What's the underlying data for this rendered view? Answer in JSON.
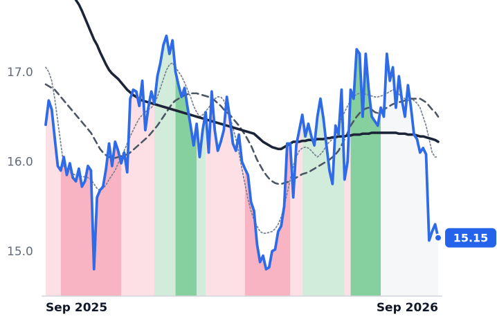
{
  "chart_data": {
    "type": "line",
    "xlabel": "",
    "ylabel": "",
    "ylim": [
      14.5,
      17.8
    ],
    "y_ticks": [
      {
        "value": 15.0,
        "label": "15.0"
      },
      {
        "value": 16.0,
        "label": "16.0"
      },
      {
        "value": 17.0,
        "label": "17.0"
      }
    ],
    "x_ticks": [
      {
        "index": 0,
        "label": "Sep 2025"
      },
      {
        "index": 130,
        "label": "Sep 2026"
      }
    ],
    "x_count": 131,
    "grid": false,
    "last_value_label": "15.15",
    "colors": {
      "price": "#2f6be6",
      "long_ma": "#1b2537",
      "mid_ma": "#4b5563",
      "short_ma": "#7b8594",
      "badge": "#2563eb",
      "red_light": "#fde0e5",
      "red_dark": "#f8b4c2",
      "green_light": "#d2ecdb",
      "green_dark": "#86cf9e",
      "gray": "#f6f7f9",
      "axis": "#d1d5db"
    },
    "bands": [
      {
        "start": 0,
        "end": 5,
        "color": "red_light"
      },
      {
        "start": 5,
        "end": 25,
        "color": "red_dark"
      },
      {
        "start": 25,
        "end": 36,
        "color": "red_light"
      },
      {
        "start": 36,
        "end": 43,
        "color": "green_light"
      },
      {
        "start": 43,
        "end": 50,
        "color": "green_dark"
      },
      {
        "start": 50,
        "end": 53,
        "color": "green_light"
      },
      {
        "start": 53,
        "end": 66,
        "color": "red_light"
      },
      {
        "start": 66,
        "end": 81,
        "color": "red_dark"
      },
      {
        "start": 81,
        "end": 85,
        "color": "red_light"
      },
      {
        "start": 85,
        "end": 99,
        "color": "green_light"
      },
      {
        "start": 99,
        "end": 101,
        "color": "red_light"
      },
      {
        "start": 101,
        "end": 111,
        "color": "green_dark"
      },
      {
        "start": 111,
        "end": 131,
        "color": "gray"
      }
    ],
    "series": [
      {
        "key": "price",
        "values": [
          16.41,
          16.68,
          16.58,
          16.26,
          15.95,
          15.9,
          16.05,
          15.85,
          15.98,
          15.82,
          15.78,
          15.92,
          15.72,
          15.78,
          15.95,
          15.9,
          14.8,
          15.6,
          15.68,
          15.72,
          15.92,
          16.2,
          15.95,
          16.22,
          16.12,
          15.98,
          16.1,
          15.88,
          16.7,
          16.8,
          16.78,
          16.62,
          16.9,
          16.35,
          16.6,
          16.78,
          16.65,
          16.95,
          17.1,
          17.3,
          17.4,
          17.2,
          17.35,
          17.0,
          16.85,
          16.72,
          16.82,
          16.6,
          16.4,
          16.18,
          16.42,
          16.05,
          16.35,
          16.55,
          16.1,
          16.78,
          16.35,
          16.12,
          16.22,
          16.35,
          16.72,
          16.48,
          16.2,
          16.12,
          16.3,
          16.0,
          15.92,
          15.85,
          15.55,
          15.45,
          15.08,
          14.88,
          14.95,
          14.8,
          14.82,
          15.0,
          15.02,
          15.22,
          15.28,
          15.5,
          16.2,
          16.2,
          15.6,
          16.18,
          16.35,
          16.52,
          16.28,
          16.42,
          16.28,
          16.18,
          16.5,
          16.7,
          16.48,
          16.18,
          15.9,
          15.75,
          16.4,
          16.3,
          16.8,
          15.8,
          16.0,
          16.8,
          16.7,
          17.25,
          17.2,
          16.5,
          17.2,
          16.8,
          16.5,
          16.45,
          16.4,
          16.6,
          16.5,
          17.2,
          16.9,
          17.05,
          16.6,
          16.95,
          16.68,
          16.5,
          16.85,
          16.6,
          16.3,
          16.25,
          16.1,
          16.15,
          16.08,
          15.12,
          15.22,
          15.3,
          15.15
        ]
      },
      {
        "key": "long_ma",
        "values": [
          null,
          null,
          null,
          null,
          null,
          null,
          null,
          null,
          null,
          null,
          17.8,
          17.75,
          17.68,
          17.6,
          17.52,
          17.44,
          17.36,
          17.3,
          17.22,
          17.15,
          17.08,
          17.02,
          16.98,
          16.95,
          16.92,
          16.88,
          16.84,
          16.8,
          16.77,
          16.74,
          16.72,
          16.7,
          16.68,
          16.67,
          16.66,
          16.65,
          16.64,
          16.63,
          16.62,
          16.61,
          16.6,
          16.59,
          16.58,
          16.57,
          16.56,
          16.55,
          16.54,
          16.53,
          16.52,
          16.51,
          16.5,
          16.49,
          16.48,
          16.47,
          16.46,
          16.45,
          16.44,
          16.43,
          16.42,
          16.41,
          16.4,
          16.39,
          16.38,
          16.37,
          16.36,
          16.35,
          16.34,
          16.33,
          16.32,
          16.31,
          16.28,
          16.25,
          16.22,
          16.2,
          16.18,
          16.16,
          16.15,
          16.14,
          16.14,
          16.16,
          16.18,
          16.2,
          16.22,
          16.22,
          16.22,
          16.23,
          16.23,
          16.24,
          16.24,
          16.24,
          16.25,
          16.25,
          16.25,
          16.26,
          16.26,
          16.27,
          16.27,
          16.28,
          16.28,
          16.28,
          16.29,
          16.29,
          16.3,
          16.3,
          16.3,
          16.31,
          16.31,
          16.31,
          16.32,
          16.32,
          16.32,
          16.32,
          16.32,
          16.32,
          16.32,
          16.32,
          16.32,
          16.31,
          16.31,
          16.31,
          16.3,
          16.3,
          16.3,
          16.29,
          16.28,
          16.28,
          16.27,
          16.26,
          16.25,
          16.24,
          16.22
        ]
      },
      {
        "key": "mid_ma",
        "values": [
          16.86,
          16.84,
          16.82,
          16.8,
          16.76,
          16.72,
          16.68,
          16.64,
          16.6,
          16.56,
          16.52,
          16.48,
          16.44,
          16.4,
          16.36,
          16.32,
          16.26,
          16.2,
          16.14,
          16.1,
          16.07,
          16.05,
          16.04,
          16.04,
          16.05,
          16.06,
          16.07,
          16.08,
          16.1,
          16.13,
          16.16,
          16.19,
          16.22,
          16.25,
          16.28,
          16.32,
          16.36,
          16.4,
          16.45,
          16.5,
          16.55,
          16.6,
          16.65,
          16.68,
          16.7,
          16.72,
          16.74,
          16.75,
          16.76,
          16.76,
          16.76,
          16.75,
          16.74,
          16.73,
          16.72,
          16.7,
          16.68,
          16.65,
          16.62,
          16.58,
          16.55,
          16.52,
          16.48,
          16.44,
          16.4,
          16.35,
          16.3,
          16.24,
          16.18,
          16.1,
          16.02,
          15.96,
          15.9,
          15.85,
          15.81,
          15.78,
          15.76,
          15.75,
          15.75,
          15.76,
          15.77,
          15.78,
          15.8,
          15.82,
          15.84,
          15.86,
          15.87,
          15.88,
          15.9,
          15.92,
          15.94,
          15.96,
          15.98,
          16.0,
          16.02,
          16.05,
          16.08,
          16.12,
          16.18,
          16.25,
          16.32,
          16.4,
          16.45,
          16.5,
          16.54,
          16.57,
          16.59,
          16.6,
          16.58,
          16.55,
          16.54,
          16.56,
          16.58,
          16.6,
          16.62,
          16.64,
          16.65,
          16.66,
          16.67,
          16.68,
          16.69,
          16.7,
          16.7,
          16.7,
          16.7,
          16.68,
          16.66,
          16.62,
          16.58,
          16.55,
          16.5
        ]
      },
      {
        "key": "short_ma",
        "values": [
          17.05,
          17.0,
          16.9,
          16.7,
          16.45,
          16.2,
          15.95,
          15.9,
          15.88,
          15.86,
          15.85,
          15.84,
          15.83,
          15.83,
          15.82,
          15.8,
          15.75,
          15.7,
          15.68,
          15.7,
          15.74,
          15.8,
          15.85,
          15.9,
          15.98,
          16.05,
          16.12,
          16.2,
          16.28,
          16.35,
          16.42,
          16.48,
          16.52,
          16.55,
          16.58,
          16.6,
          16.65,
          16.72,
          16.82,
          16.92,
          17.02,
          17.08,
          17.1,
          17.05,
          17.0,
          16.95,
          16.88,
          16.8,
          16.72,
          16.62,
          16.55,
          16.5,
          16.52,
          16.56,
          16.6,
          16.65,
          16.7,
          16.72,
          16.72,
          16.68,
          16.6,
          16.5,
          16.38,
          16.25,
          16.1,
          15.92,
          15.75,
          15.58,
          15.45,
          15.35,
          15.28,
          15.22,
          15.2,
          15.2,
          15.21,
          15.22,
          15.25,
          15.3,
          15.38,
          15.5,
          15.65,
          15.8,
          15.95,
          16.05,
          16.12,
          16.15,
          16.16,
          16.15,
          16.12,
          16.08,
          16.05,
          16.08,
          16.12,
          16.18,
          16.22,
          16.25,
          16.3,
          16.38,
          16.48,
          16.55,
          16.62,
          16.68,
          16.72,
          16.75,
          16.76,
          16.76,
          16.75,
          16.74,
          16.73,
          16.72,
          16.72,
          16.73,
          16.74,
          16.76,
          16.78,
          16.8,
          16.78,
          16.75,
          16.72,
          16.7,
          16.68,
          16.7,
          16.68,
          16.65,
          16.6,
          16.5,
          16.4,
          16.25,
          16.1,
          16.05,
          16.05
        ]
      }
    ]
  }
}
